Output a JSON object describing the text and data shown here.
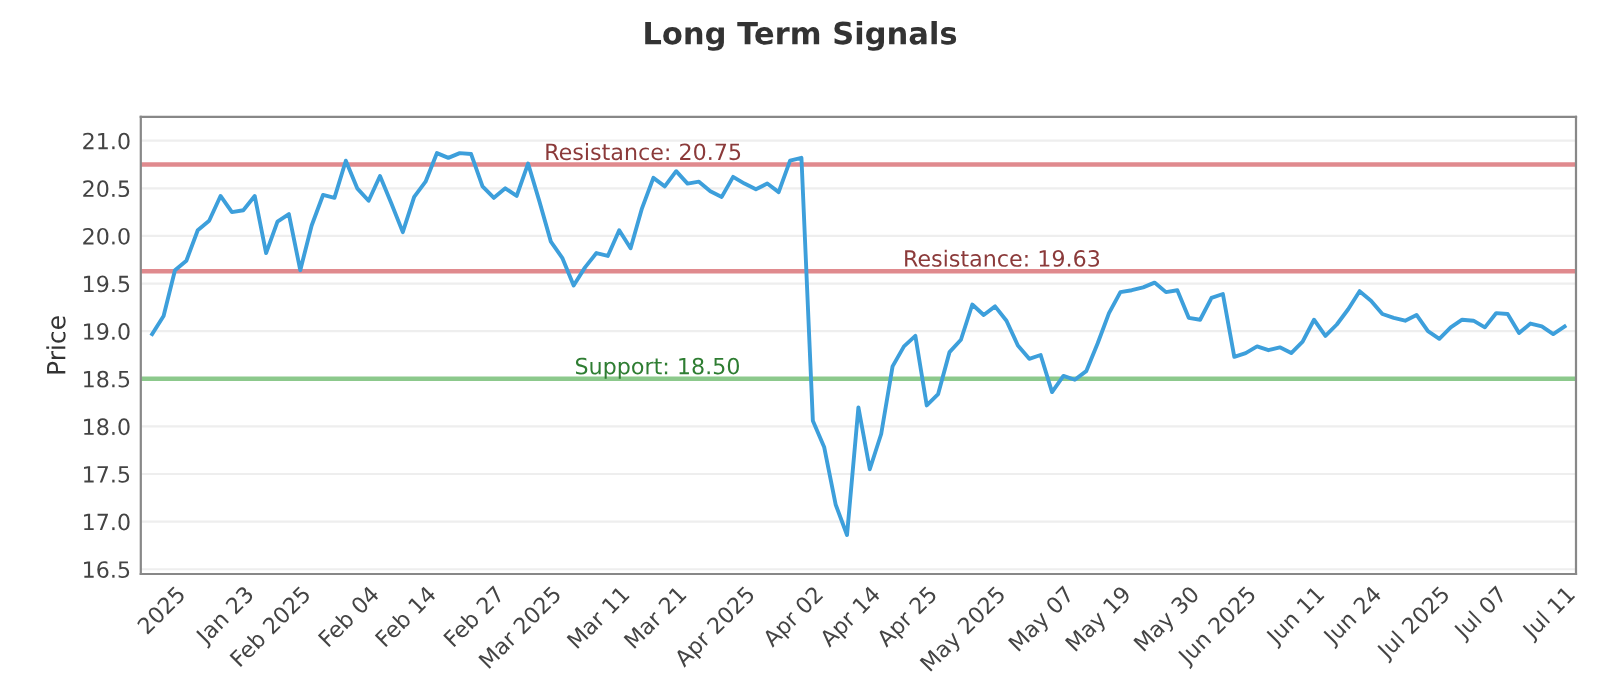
{
  "chart_data": {
    "type": "line",
    "title": "Long Term Signals",
    "ylabel": "Price",
    "categories": [
      null,
      null,
      "2025",
      null,
      null,
      null,
      null,
      null,
      "Jan 23",
      null,
      null,
      null,
      null,
      "Feb 2025",
      null,
      null,
      null,
      null,
      null,
      "Feb 04",
      null,
      null,
      null,
      null,
      "Feb 14",
      null,
      null,
      null,
      null,
      null,
      "Feb 27",
      null,
      null,
      null,
      null,
      "Mar 2025",
      null,
      null,
      null,
      null,
      null,
      "Mar 11",
      null,
      null,
      null,
      null,
      "Mar 21",
      null,
      null,
      null,
      null,
      null,
      "Apr 2025",
      null,
      null,
      null,
      null,
      null,
      "Apr 02",
      null,
      null,
      null,
      null,
      "Apr 14",
      null,
      null,
      null,
      null,
      "Apr 25",
      null,
      null,
      null,
      null,
      null,
      "May 2025",
      null,
      null,
      null,
      null,
      null,
      "May 07",
      null,
      null,
      null,
      null,
      "May 19",
      null,
      null,
      null,
      null,
      null,
      "May 30",
      null,
      null,
      null,
      null,
      "Jun 2025",
      null,
      null,
      null,
      null,
      null,
      "Jun 11",
      null,
      null,
      null,
      null,
      "Jun 24",
      null,
      null,
      null,
      null,
      null,
      "Jul 2025",
      null,
      null,
      null,
      null,
      "Jul 07",
      null,
      null,
      null,
      null,
      null,
      "Jul 11"
    ],
    "series": [
      {
        "color": "#3d9fdb",
        "values": [
          18.97,
          19.16,
          19.64,
          19.74,
          20.06,
          20.16,
          20.42,
          20.25,
          20.27,
          20.42,
          19.82,
          20.15,
          20.23,
          19.64,
          20.11,
          20.43,
          20.4,
          20.79,
          20.5,
          20.37,
          20.63,
          20.34,
          20.04,
          20.41,
          20.57,
          20.87,
          20.82,
          20.87,
          20.86,
          20.52,
          20.4,
          20.5,
          20.42,
          20.76,
          20.36,
          19.94,
          19.77,
          19.48,
          19.67,
          19.82,
          19.79,
          20.06,
          19.87,
          20.29,
          20.61,
          20.52,
          20.68,
          20.55,
          20.57,
          20.47,
          20.41,
          20.62,
          20.55,
          20.49,
          20.55,
          20.46,
          20.79,
          20.82,
          18.06,
          17.78,
          17.18,
          16.86,
          18.2,
          17.55,
          17.92,
          18.63,
          18.84,
          18.95,
          18.22,
          18.34,
          18.78,
          18.91,
          19.28,
          19.17,
          19.26,
          19.11,
          18.85,
          18.71,
          18.75,
          18.36,
          18.53,
          18.49,
          18.58,
          18.87,
          19.19,
          19.41,
          19.43,
          19.46,
          19.51,
          19.41,
          19.43,
          19.14,
          19.12,
          19.35,
          19.39,
          18.73,
          18.77,
          18.84,
          18.8,
          18.83,
          18.77,
          18.89,
          19.12,
          18.95,
          19.07,
          19.23,
          19.42,
          19.32,
          19.18,
          19.14,
          19.11,
          19.17,
          19.0,
          18.92,
          19.04,
          19.12,
          19.11,
          19.04,
          19.19,
          19.18,
          18.98,
          19.08,
          19.05,
          18.97,
          19.05
        ]
      }
    ],
    "ylim": [
      16.45,
      21.25
    ],
    "yticks": [
      16.5,
      {
        "value": 17,
        "label": "17.0"
      },
      17.5,
      {
        "value": 18,
        "label": "18.0"
      },
      18.5,
      {
        "value": 19,
        "label": "19.0"
      },
      19.5,
      {
        "value": 20,
        "label": "20.0"
      },
      20.5,
      {
        "value": 21,
        "label": "21.0"
      }
    ],
    "ref_lines": [
      {
        "axis": "y",
        "value": 20.75,
        "label": "Resistance: 20.75",
        "color": "#e08a8e"
      },
      {
        "axis": "y",
        "value": 19.63,
        "label": "Resistance: 19.63",
        "color": "#e08a8e"
      },
      {
        "axis": "y",
        "value": 18.5,
        "label": "Support: 18.50",
        "color": "#8cc98c"
      }
    ],
    "grid": "y",
    "marker": "none",
    "line_style": "solid"
  }
}
